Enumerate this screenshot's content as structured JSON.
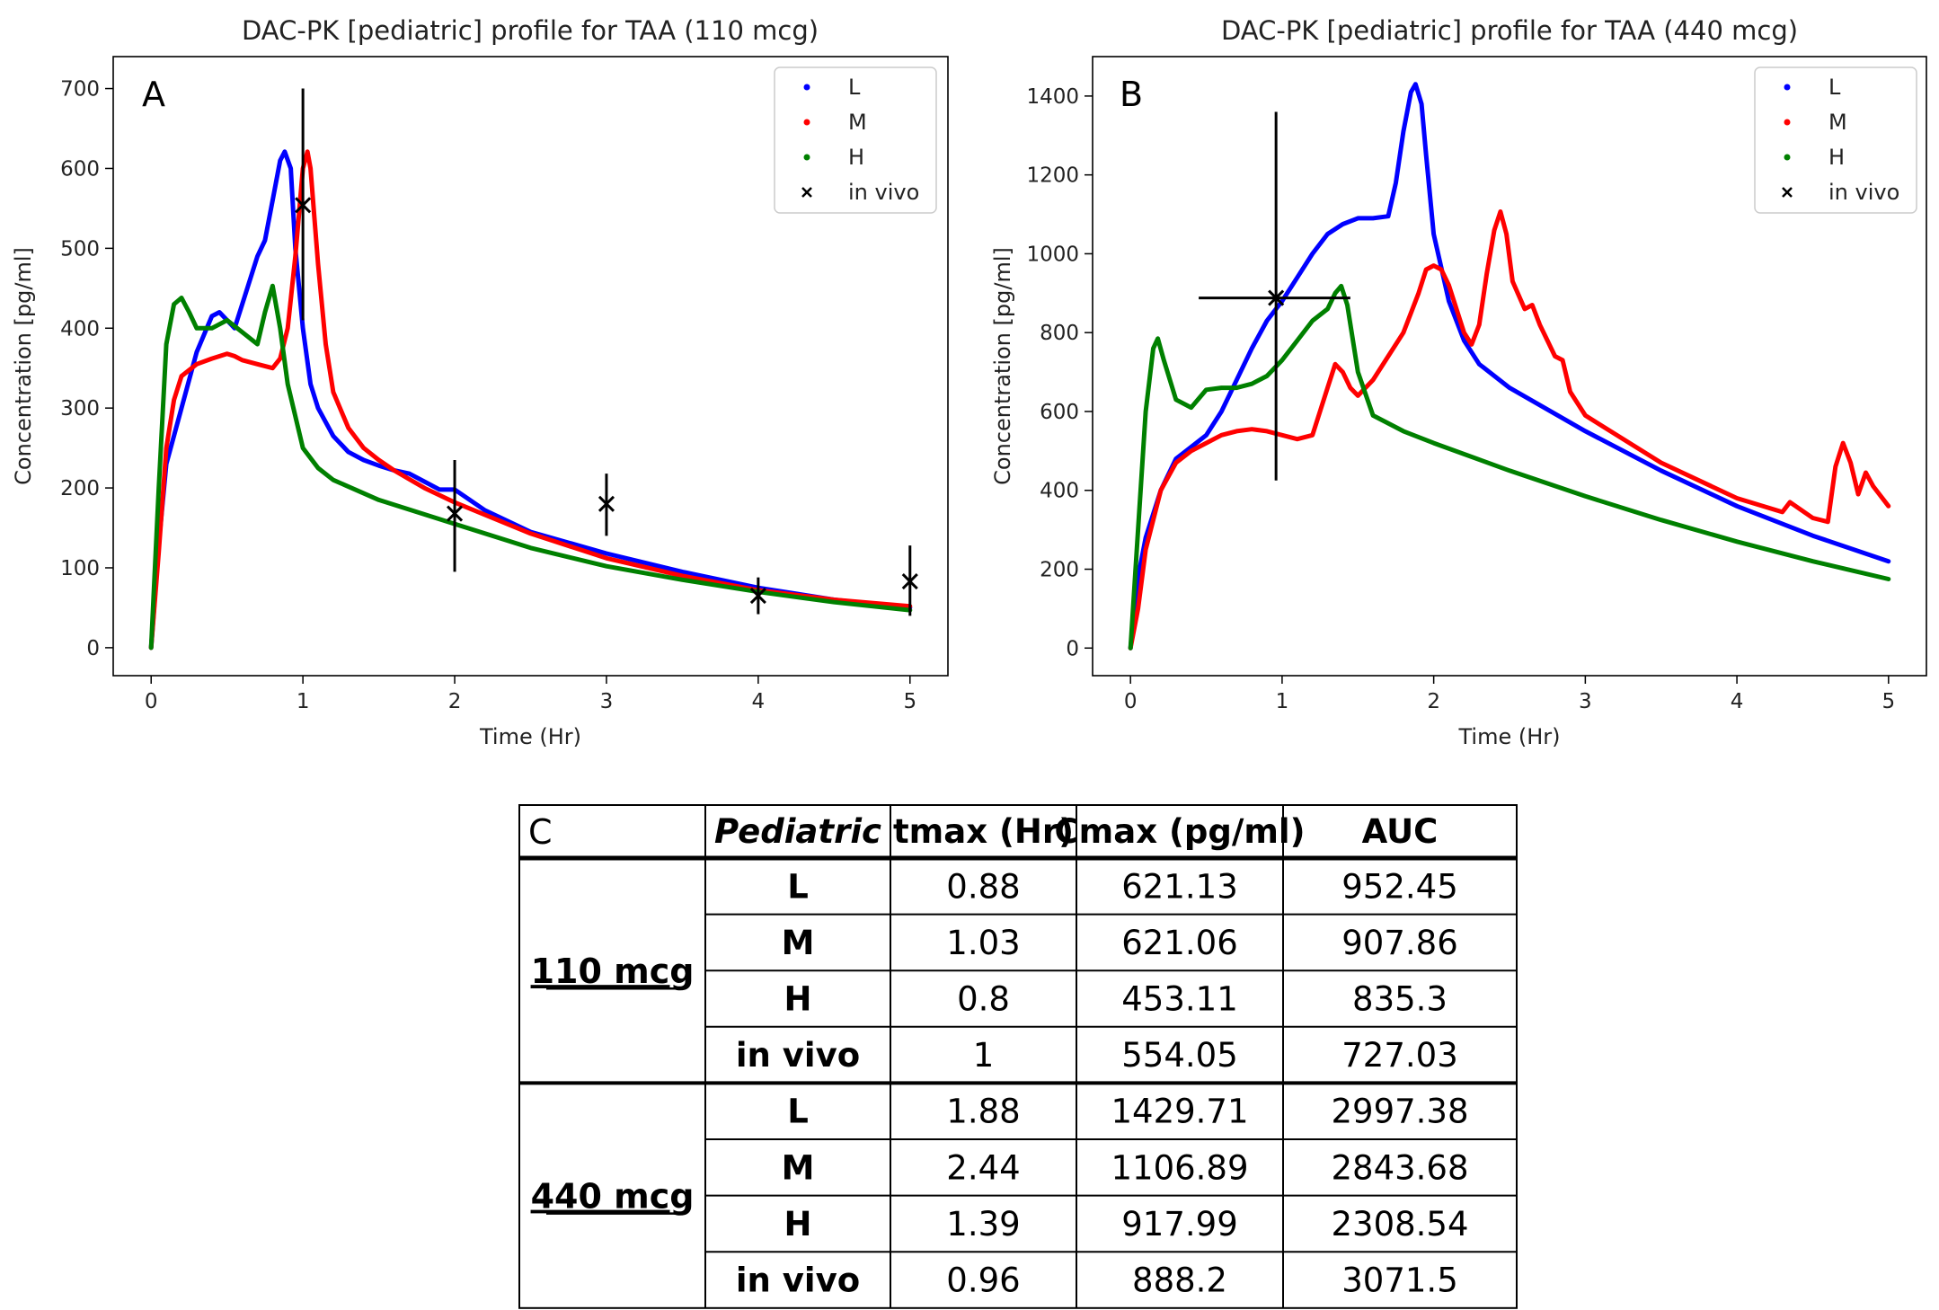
{
  "chart_data": [
    {
      "panel": "A",
      "type": "line",
      "title": "DAC-PK [pediatric] profile for TAA (110 mcg)",
      "xlabel": "Time (Hr)",
      "ylabel": "Concentration [pg/ml]",
      "xlim": [
        -0.25,
        5.25
      ],
      "ylim": [
        -35,
        740
      ],
      "xticks": [
        0,
        1,
        2,
        3,
        4,
        5
      ],
      "yticks": [
        0,
        100,
        200,
        300,
        400,
        500,
        600,
        700
      ],
      "legend_position": "top-right",
      "series": [
        {
          "name": "L",
          "color": "#0000ff",
          "x": [
            0,
            0.05,
            0.1,
            0.2,
            0.3,
            0.4,
            0.45,
            0.5,
            0.55,
            0.6,
            0.7,
            0.75,
            0.8,
            0.85,
            0.88,
            0.92,
            0.95,
            1.0,
            1.05,
            1.1,
            1.2,
            1.3,
            1.4,
            1.5,
            1.6,
            1.7,
            1.8,
            1.9,
            2.0,
            2.1,
            2.2,
            2.5,
            3.0,
            3.5,
            4.0,
            4.5,
            5.0
          ],
          "y": [
            0,
            130,
            230,
            300,
            370,
            415,
            420,
            410,
            400,
            430,
            490,
            510,
            560,
            610,
            621,
            600,
            500,
            400,
            330,
            300,
            265,
            245,
            235,
            228,
            222,
            218,
            208,
            198,
            198,
            185,
            172,
            145,
            118,
            95,
            75,
            60,
            50
          ]
        },
        {
          "name": "M",
          "color": "#ff0000",
          "x": [
            0,
            0.05,
            0.1,
            0.15,
            0.2,
            0.3,
            0.4,
            0.5,
            0.55,
            0.6,
            0.7,
            0.8,
            0.85,
            0.9,
            0.95,
            1.0,
            1.03,
            1.05,
            1.1,
            1.15,
            1.2,
            1.3,
            1.4,
            1.5,
            1.6,
            1.8,
            2.0,
            2.5,
            3.0,
            3.5,
            4.0,
            4.5,
            5.0
          ],
          "y": [
            0,
            120,
            250,
            310,
            340,
            355,
            362,
            368,
            365,
            360,
            355,
            350,
            362,
            400,
            490,
            600,
            621,
            600,
            480,
            380,
            320,
            275,
            250,
            235,
            222,
            200,
            182,
            143,
            112,
            90,
            72,
            60,
            52
          ]
        },
        {
          "name": "H",
          "color": "#008000",
          "x": [
            0,
            0.05,
            0.1,
            0.15,
            0.2,
            0.25,
            0.3,
            0.4,
            0.5,
            0.6,
            0.7,
            0.75,
            0.8,
            0.85,
            0.9,
            1.0,
            1.1,
            1.2,
            1.5,
            2.0,
            2.5,
            3.0,
            3.5,
            4.0,
            4.5,
            5.0
          ],
          "y": [
            0,
            200,
            380,
            430,
            438,
            420,
            400,
            400,
            410,
            395,
            380,
            420,
            453,
            400,
            330,
            250,
            225,
            210,
            185,
            155,
            125,
            102,
            85,
            70,
            57,
            47
          ]
        }
      ],
      "in_vivo": {
        "name": "in vivo",
        "points": [
          {
            "x": 1,
            "y": 554,
            "yerr_low": 410,
            "yerr_high": 700
          },
          {
            "x": 2,
            "y": 168,
            "yerr_low": 95,
            "yerr_high": 235
          },
          {
            "x": 3,
            "y": 180,
            "yerr_low": 140,
            "yerr_high": 218
          },
          {
            "x": 4,
            "y": 65,
            "yerr_low": 42,
            "yerr_high": 88
          },
          {
            "x": 5,
            "y": 83,
            "yerr_low": 40,
            "yerr_high": 128
          }
        ]
      }
    },
    {
      "panel": "B",
      "type": "line",
      "title": "DAC-PK [pediatric] profile for TAA (440 mcg)",
      "xlabel": "Time (Hr)",
      "ylabel": "Concentration [pg/ml]",
      "xlim": [
        -0.25,
        5.25
      ],
      "ylim": [
        -70,
        1500
      ],
      "xticks": [
        0,
        1,
        2,
        3,
        4,
        5
      ],
      "yticks": [
        0,
        200,
        400,
        600,
        800,
        1000,
        1200,
        1400
      ],
      "legend_position": "top-right",
      "series": [
        {
          "name": "L",
          "color": "#0000ff",
          "x": [
            0,
            0.05,
            0.1,
            0.2,
            0.3,
            0.4,
            0.5,
            0.6,
            0.7,
            0.8,
            0.9,
            1.0,
            1.1,
            1.2,
            1.3,
            1.4,
            1.5,
            1.6,
            1.7,
            1.75,
            1.8,
            1.85,
            1.88,
            1.92,
            1.95,
            2.0,
            2.1,
            2.2,
            2.3,
            2.5,
            3.0,
            3.5,
            4.0,
            4.5,
            5.0
          ],
          "y": [
            0,
            180,
            280,
            400,
            480,
            510,
            540,
            600,
            680,
            760,
            830,
            880,
            940,
            1000,
            1050,
            1075,
            1090,
            1090,
            1095,
            1180,
            1310,
            1410,
            1430,
            1380,
            1250,
            1050,
            880,
            780,
            720,
            660,
            550,
            450,
            360,
            285,
            220
          ]
        },
        {
          "name": "M",
          "color": "#ff0000",
          "x": [
            0,
            0.05,
            0.1,
            0.2,
            0.3,
            0.4,
            0.5,
            0.6,
            0.7,
            0.8,
            0.9,
            1.0,
            1.1,
            1.2,
            1.3,
            1.35,
            1.4,
            1.45,
            1.5,
            1.6,
            1.7,
            1.8,
            1.9,
            1.95,
            2.0,
            2.05,
            2.1,
            2.2,
            2.25,
            2.3,
            2.35,
            2.4,
            2.44,
            2.48,
            2.52,
            2.6,
            2.65,
            2.7,
            2.75,
            2.8,
            2.85,
            2.9,
            3.0,
            3.5,
            4.0,
            4.3,
            4.35,
            4.5,
            4.6,
            4.65,
            4.7,
            4.75,
            4.8,
            4.85,
            4.9,
            5.0
          ],
          "y": [
            0,
            100,
            250,
            400,
            470,
            500,
            520,
            540,
            550,
            555,
            550,
            540,
            530,
            540,
            660,
            720,
            700,
            660,
            640,
            680,
            740,
            800,
            900,
            960,
            970,
            960,
            920,
            800,
            770,
            820,
            950,
            1060,
            1107,
            1050,
            930,
            860,
            870,
            820,
            780,
            740,
            730,
            650,
            590,
            470,
            380,
            345,
            370,
            330,
            320,
            460,
            520,
            470,
            390,
            445,
            410,
            360
          ]
        },
        {
          "name": "H",
          "color": "#008000",
          "x": [
            0,
            0.05,
            0.1,
            0.15,
            0.18,
            0.22,
            0.3,
            0.4,
            0.5,
            0.6,
            0.7,
            0.8,
            0.9,
            1.0,
            1.1,
            1.2,
            1.3,
            1.35,
            1.39,
            1.43,
            1.5,
            1.6,
            1.8,
            2.0,
            2.5,
            3.0,
            3.5,
            4.0,
            4.5,
            5.0
          ],
          "y": [
            0,
            300,
            600,
            760,
            785,
            730,
            630,
            610,
            655,
            660,
            660,
            670,
            690,
            730,
            780,
            830,
            860,
            900,
            918,
            870,
            700,
            590,
            550,
            520,
            450,
            385,
            325,
            270,
            220,
            175
          ]
        }
      ],
      "in_vivo": {
        "name": "in vivo",
        "points": [
          {
            "x": 0.96,
            "y": 888,
            "yerr_low": 425,
            "yerr_high": 1360,
            "xerr_low": 0.45,
            "xerr_high": 1.45
          }
        ]
      }
    }
  ],
  "table": {
    "corner": "C",
    "headers": [
      "Pediatric",
      "tmax (Hr)",
      "Cmax (pg/ml)",
      "AUC"
    ],
    "groups": [
      {
        "label": "110 mcg",
        "rows": [
          {
            "name": "L",
            "tmax": "0.88",
            "cmax": "621.13",
            "auc": "952.45"
          },
          {
            "name": "M",
            "tmax": "1.03",
            "cmax": "621.06",
            "auc": "907.86"
          },
          {
            "name": "H",
            "tmax": "0.8",
            "cmax": "453.11",
            "auc": "835.3"
          },
          {
            "name": "in vivo",
            "tmax": "1",
            "cmax": "554.05",
            "auc": "727.03"
          }
        ]
      },
      {
        "label": "440 mcg",
        "rows": [
          {
            "name": "L",
            "tmax": "1.88",
            "cmax": "1429.71",
            "auc": "2997.38"
          },
          {
            "name": "M",
            "tmax": "2.44",
            "cmax": "1106.89",
            "auc": "2843.68"
          },
          {
            "name": "H",
            "tmax": "1.39",
            "cmax": "917.99",
            "auc": "2308.54"
          },
          {
            "name": "in vivo",
            "tmax": "0.96",
            "cmax": "888.2",
            "auc": "3071.5"
          }
        ]
      }
    ]
  }
}
